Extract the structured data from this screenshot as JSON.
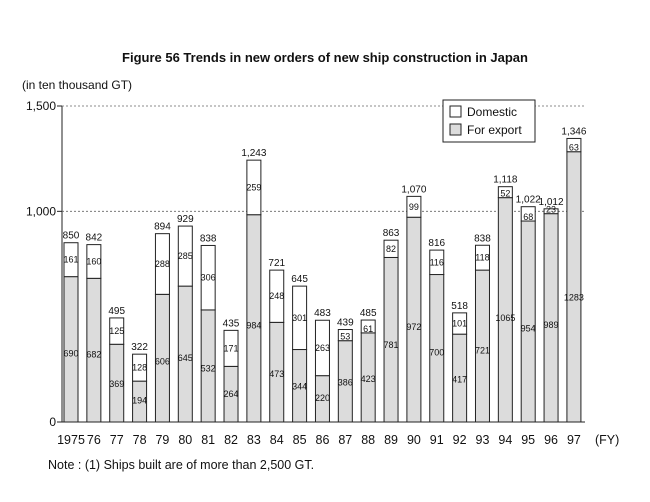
{
  "title": "Figure 56 Trends in new orders of new ship construction in Japan",
  "y_unit_label": "(in ten thousand GT)",
  "note": "Note : (1) Ships built are of more than 2,500 GT.",
  "colors": {
    "domestic": "#ffffff",
    "export": "#dcdcdc",
    "outline": "#222222"
  },
  "chart_data": {
    "type": "bar",
    "stacked": true,
    "categories": [
      "1975",
      "76",
      "77",
      "78",
      "79",
      "80",
      "81",
      "82",
      "83",
      "84",
      "85",
      "86",
      "87",
      "88",
      "89",
      "90",
      "91",
      "92",
      "93",
      "94",
      "95",
      "96",
      "97"
    ],
    "x_unit": "(FY)",
    "ylim": [
      0,
      1500
    ],
    "yticks": [
      0,
      1000,
      1500
    ],
    "ytick_labels": [
      "0",
      "1,000",
      "1,500"
    ],
    "legend_position": "top-right",
    "series": [
      {
        "name": "For export",
        "values": [
          690,
          682,
          369,
          194,
          606,
          645,
          532,
          264,
          984,
          473,
          344,
          220,
          386,
          423,
          781,
          972,
          700,
          417,
          721,
          1065,
          954,
          989,
          1283
        ]
      },
      {
        "name": "Domestic",
        "values": [
          161,
          160,
          125,
          128,
          288,
          285,
          306,
          171,
          259,
          248,
          301,
          263,
          53,
          61,
          82,
          99,
          116,
          101,
          118,
          52,
          68,
          23,
          63
        ]
      }
    ],
    "totals": [
      "850",
      "842",
      "495",
      "322",
      "894",
      "929",
      "838",
      "435",
      "1,243",
      "721",
      "645",
      "483",
      "439",
      "485",
      "863",
      "1,070",
      "816",
      "518",
      "838",
      "1,118",
      "1,022",
      "1,012",
      "1,346"
    ]
  }
}
